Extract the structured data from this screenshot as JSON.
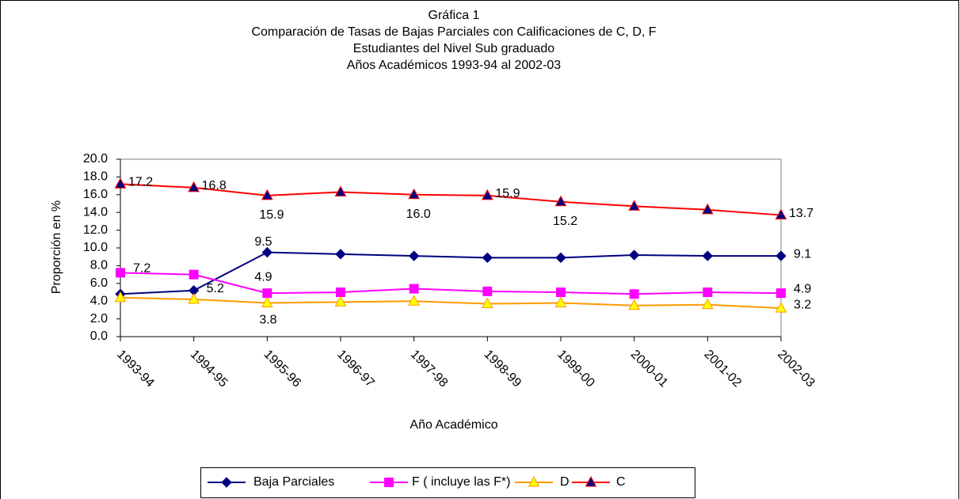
{
  "chart_data": {
    "type": "line",
    "title": [
      "Gráfica 1",
      "Comparación de  Tasas de Bajas Parciales con Calificaciones de C, D, F",
      "Estudiantes del Nivel Sub graduado",
      "Años Académicos 1993-94 al 2002-03"
    ],
    "x_label": "Año Académico",
    "y_label": "Proporción en %",
    "categories": [
      "1993-94",
      "1994-95",
      "1995-96",
      "1996-97",
      "1997-98",
      "1998-99",
      "1999-00",
      "2000-01",
      "2001-02",
      "2002-03"
    ],
    "ylim": [
      0,
      20
    ],
    "yticks": [
      {
        "value": 0,
        "label": "0.0"
      },
      {
        "value": 2,
        "label": "2.0"
      },
      {
        "value": 4,
        "label": "4.0"
      },
      {
        "value": 6,
        "label": "6.0"
      },
      {
        "value": 8,
        "label": "8.0"
      },
      {
        "value": 10,
        "label": "10.0"
      },
      {
        "value": 12,
        "label": "12.0"
      },
      {
        "value": 14,
        "label": "14.0"
      },
      {
        "value": 16,
        "label": "16.0"
      },
      {
        "value": 18,
        "label": "18.0"
      },
      {
        "value": 20,
        "label": "20.0"
      }
    ],
    "legend": "bottom",
    "series": [
      {
        "name": "Baja Parciales",
        "color": "#000080",
        "marker": "diamond",
        "marker_color": "#000080",
        "values": [
          4.8,
          5.2,
          9.5,
          9.3,
          9.1,
          8.9,
          8.9,
          9.2,
          9.1,
          9.1
        ],
        "value_labels": [
          null,
          "5.2",
          "9.5",
          null,
          null,
          null,
          null,
          null,
          null,
          "9.1"
        ]
      },
      {
        "name": "F ( incluye las F*)",
        "color": "#FF00FF",
        "marker": "square",
        "marker_color": "#FF00FF",
        "values": [
          7.2,
          7.0,
          4.9,
          5.0,
          5.4,
          5.1,
          5.0,
          4.8,
          5.0,
          4.9
        ],
        "value_labels": [
          "7.2",
          null,
          "4.9",
          null,
          null,
          null,
          null,
          null,
          null,
          "4.9"
        ]
      },
      {
        "name": "D",
        "color": "#FF9900",
        "marker": "triangle",
        "marker_color": "#FFFF00",
        "values": [
          4.4,
          4.2,
          3.8,
          3.9,
          4.0,
          3.7,
          3.8,
          3.5,
          3.6,
          3.2
        ],
        "value_labels": [
          null,
          null,
          "3.8",
          null,
          null,
          null,
          null,
          null,
          null,
          "3.2"
        ]
      },
      {
        "name": "C",
        "color": "#FF0000",
        "marker": "triangle",
        "marker_color": "#000080",
        "values": [
          17.2,
          16.8,
          15.9,
          16.3,
          16.0,
          15.9,
          15.2,
          14.7,
          14.3,
          13.7
        ],
        "value_labels": [
          "17.2",
          "16.8",
          "15.9",
          null,
          "16.0",
          "15.9",
          "15.2",
          null,
          null,
          "13.7"
        ]
      }
    ]
  }
}
